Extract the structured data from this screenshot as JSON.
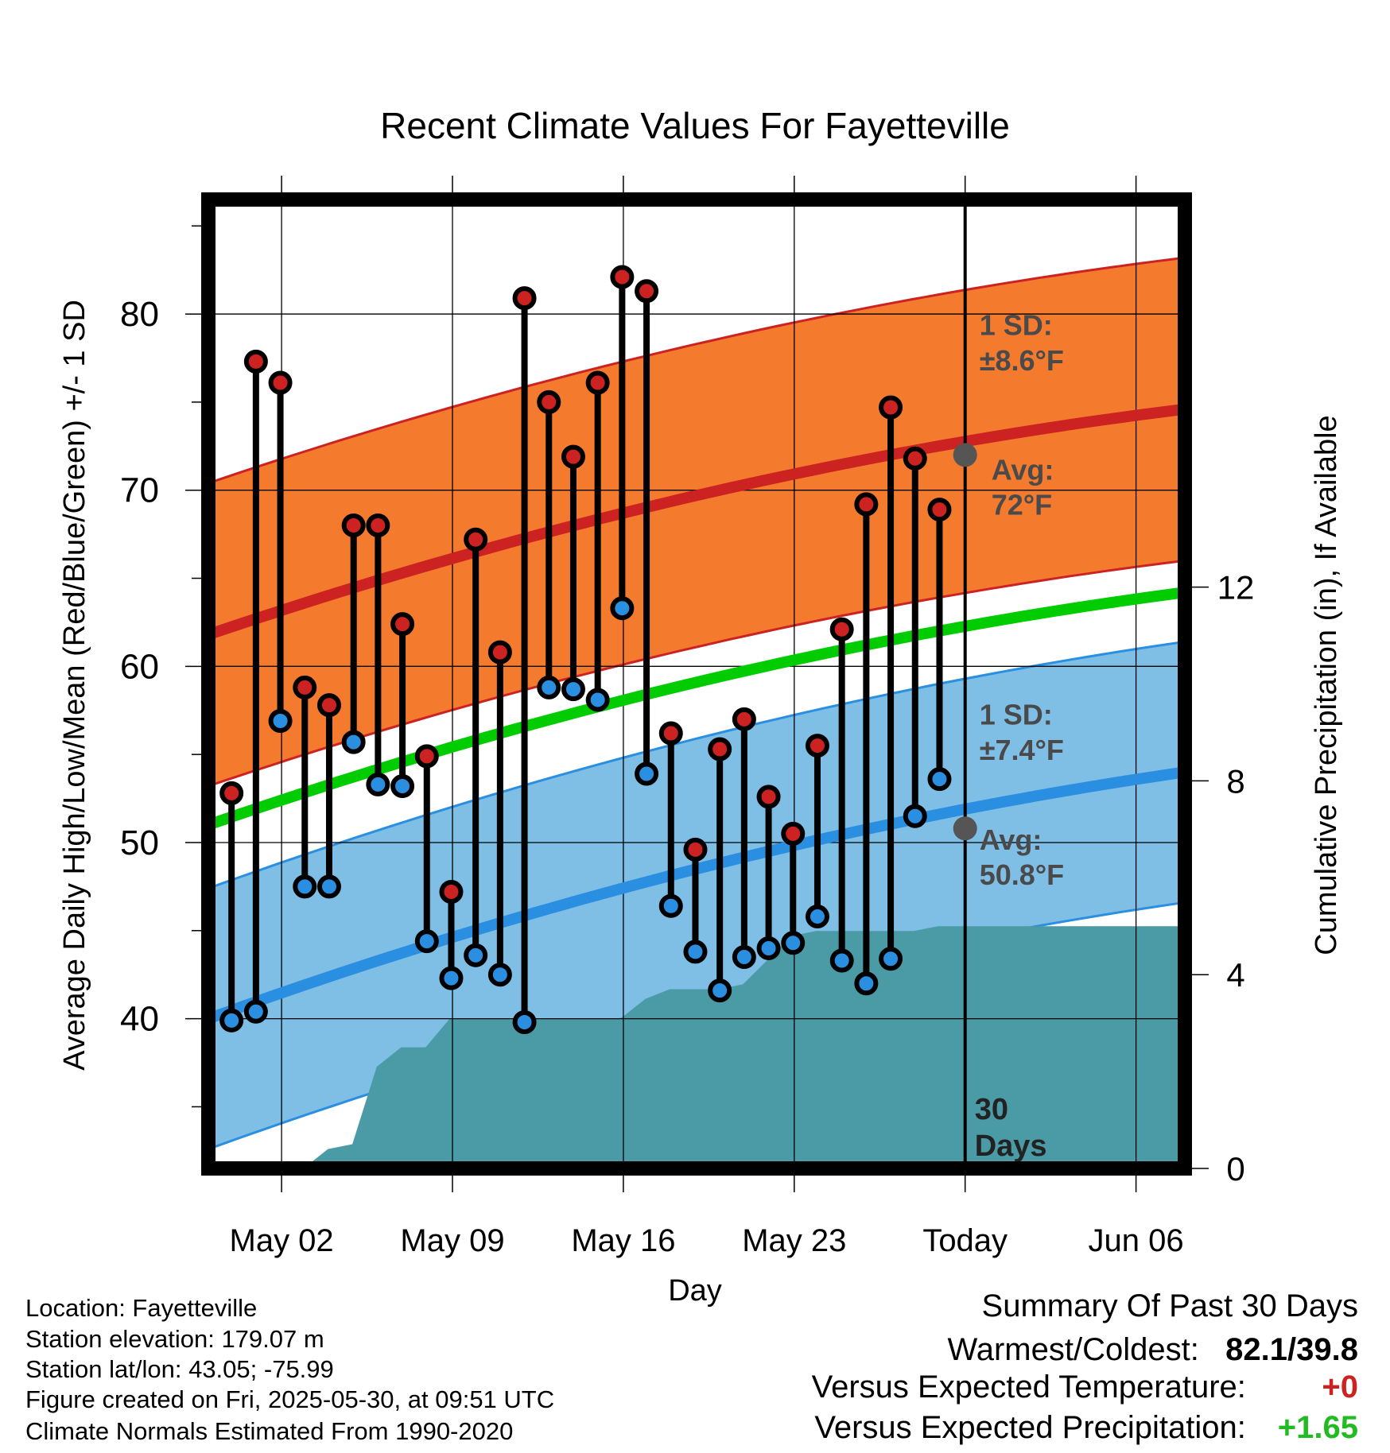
{
  "chart_data": {
    "type": "line",
    "title": "Recent Climate Values For Fayetteville",
    "xlabel": "Day",
    "ylabel": "Average Daily High/Low/Mean (Red/Blue/Green) +/- 1 SD",
    "y2label": "Cumulative Precipitation (in), If Available",
    "x_tick_labels": [
      "May 02",
      "May 09",
      "May 16",
      "May 23",
      "Today",
      "Jun 06"
    ],
    "x_tick_days": [
      2,
      9,
      16,
      23,
      30,
      37
    ],
    "xlim": [
      -1.0,
      39.0
    ],
    "ylim": [
      31.5,
      86.5
    ],
    "y_ticks": [
      40,
      50,
      60,
      70,
      80
    ],
    "y2lim": [
      0,
      20
    ],
    "y2_ticks": [
      0,
      4,
      8,
      12
    ],
    "grid": true,
    "today_day": 30,
    "days_label": "30\nDays",
    "series": [
      {
        "name": "High",
        "color": "#cc2222",
        "x": [
          -0.05,
          0.95,
          1.95,
          2.95,
          3.95,
          4.95,
          5.95,
          6.95,
          7.95,
          8.95,
          9.95,
          10.95,
          11.95,
          12.95,
          13.95,
          14.95,
          15.95,
          16.95,
          17.95,
          18.95,
          19.95,
          20.95,
          21.95,
          22.95,
          23.95,
          24.95,
          25.95,
          26.95,
          27.95,
          28.95
        ],
        "values": [
          52.8,
          77.3,
          76.1,
          58.8,
          57.8,
          68.0,
          68.0,
          62.4,
          54.9,
          47.2,
          67.2,
          60.8,
          80.9,
          75.0,
          71.9,
          76.1,
          82.1,
          81.3,
          56.2,
          49.6,
          55.3,
          57.0,
          52.6,
          50.5,
          55.5,
          62.1,
          69.2,
          74.7,
          71.8,
          68.9
        ]
      },
      {
        "name": "Low",
        "color": "#2a8fe0",
        "x": [
          -0.05,
          0.95,
          1.95,
          2.95,
          3.95,
          4.95,
          5.95,
          6.95,
          7.95,
          8.95,
          9.95,
          10.95,
          11.95,
          12.95,
          13.95,
          14.95,
          15.95,
          16.95,
          17.95,
          18.95,
          19.95,
          20.95,
          21.95,
          22.95,
          23.95,
          24.95,
          25.95,
          26.95,
          27.95,
          28.95
        ],
        "values": [
          39.9,
          40.4,
          56.9,
          47.5,
          47.5,
          55.7,
          53.3,
          53.2,
          44.4,
          42.3,
          43.6,
          42.5,
          39.8,
          58.8,
          58.7,
          58.1,
          63.3,
          53.9,
          46.4,
          43.8,
          41.6,
          43.5,
          44.0,
          44.3,
          45.8,
          43.3,
          42.0,
          43.4,
          51.5,
          53.6
        ]
      }
    ],
    "normal_high": {
      "x": [
        -1,
        39
      ],
      "mean": [
        61.8,
        74.6
      ],
      "sd": 8.6
    },
    "normal_low": {
      "x": [
        -1,
        39
      ],
      "mean": [
        40.0,
        54.0
      ],
      "sd": 7.4
    },
    "normal_mean": {
      "x": [
        -1,
        39
      ],
      "mean": [
        51.0,
        64.2
      ]
    },
    "precipitation": {
      "x": [
        -1,
        2.9,
        3.9,
        4.9,
        5.9,
        6.9,
        7.9,
        8.9,
        9.9,
        10.9,
        11.9,
        12.9,
        13.9,
        14.9,
        15.9,
        16.9,
        17.9,
        18.9,
        19.9,
        20.9,
        21.9,
        22.9,
        23.9,
        24.9,
        25.9,
        26.9,
        27.9,
        28.9,
        29.9,
        39
      ],
      "values": [
        0,
        0,
        0.4,
        0.5,
        2.1,
        2.5,
        2.5,
        3.1,
        3.1,
        3.1,
        3.1,
        3.1,
        3.1,
        3.1,
        3.1,
        3.5,
        3.7,
        3.7,
        3.7,
        3.8,
        4.3,
        4.8,
        4.9,
        4.9,
        4.9,
        4.9,
        4.9,
        5.0,
        5.0,
        5.0
      ]
    },
    "annotations": {
      "high_sd_label": "1 SD:",
      "high_sd_value": "±8.6°F",
      "high_avg_label": "Avg:",
      "high_avg_value": "72°F",
      "low_sd_label": "1 SD:",
      "low_sd_value": "±7.4°F",
      "low_avg_label": "Avg:",
      "low_avg_value": "50.8°F",
      "today_high_avg": 72.0,
      "today_low_avg": 50.8
    },
    "colors": {
      "high_band": "#f47a2e",
      "high_line": "#cc2222",
      "low_band": "#7fbfe6",
      "low_line": "#2a8fe0",
      "mean_line": "#00cc00",
      "precip": "#4a9ba6",
      "avg_marker": "#555555"
    }
  },
  "station_info": {
    "location": "Location: Fayetteville",
    "elevation": "Station elevation: 179.07 m",
    "latlon": "Station lat/lon: 43.05; -75.99",
    "created": "Figure created on Fri, 2025-05-30, at 09:51 UTC",
    "normals": "Climate Normals Estimated From 1990-2020"
  },
  "summary": {
    "title": "Summary Of Past 30 Days",
    "warmest_coldest_label": "Warmest/Coldest:",
    "warmest_coldest_value": "82.1/39.8",
    "temp_label": "Versus Expected Temperature:",
    "temp_value": "+0",
    "temp_color": "#cc2222",
    "precip_label": "Versus Expected Precipitation:",
    "precip_value": "+1.65",
    "precip_color": "#22bb22"
  }
}
